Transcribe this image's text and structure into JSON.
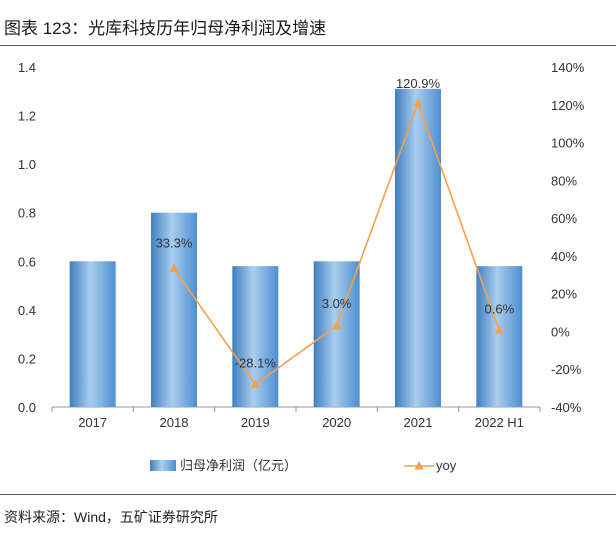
{
  "title": "图表 123：光库科技历年归母净利润及增速",
  "source": "资料来源：Wind，五矿证券研究所",
  "chart_data": {
    "type": "bar",
    "categories": [
      "2017",
      "2018",
      "2019",
      "2020",
      "2021",
      "2022 H1"
    ],
    "series": [
      {
        "name": "归母净利润（亿元）",
        "type": "bar",
        "axis": "left",
        "values": [
          0.6,
          0.8,
          0.58,
          0.6,
          1.31,
          0.58
        ]
      },
      {
        "name": "yoy",
        "type": "line",
        "axis": "right",
        "values": [
          null,
          33.3,
          -28.1,
          3.0,
          120.9,
          0.6
        ],
        "labels": [
          "",
          "33.3%",
          "-28.1%",
          "3.0%",
          "120.9%",
          "0.6%"
        ]
      }
    ],
    "y_left": {
      "min": 0.0,
      "max": 1.4,
      "ticks": [
        "0.0",
        "0.2",
        "0.4",
        "0.6",
        "0.8",
        "1.0",
        "1.2",
        "1.4"
      ]
    },
    "y_right": {
      "min": -40,
      "max": 140,
      "ticks": [
        "-40%",
        "-20%",
        "0%",
        "20%",
        "40%",
        "60%",
        "80%",
        "100%",
        "120%",
        "140%"
      ]
    },
    "legend_position": "bottom",
    "colors": {
      "bar": "#5b9bd5",
      "bar_light": "#a9cdee",
      "bar_dark": "#3f7fc0",
      "line": "#f5a04a",
      "axis": "#999999"
    }
  }
}
